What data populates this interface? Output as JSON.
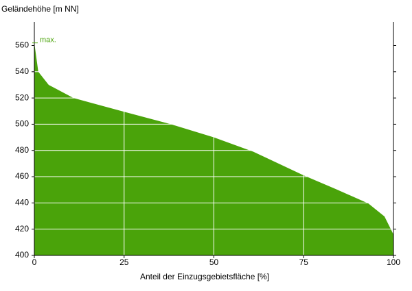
{
  "chart_data": {
    "type": "area",
    "ylabel": "Geländehöhe [m NN]",
    "xlabel": "Anteil der Einzugsgebietsfläche [%]",
    "annotation": "max.",
    "x": [
      0,
      1.1,
      4,
      10.9,
      25,
      38,
      50,
      61,
      75,
      84,
      93,
      97.5,
      100
    ],
    "values": [
      562,
      540,
      530,
      520,
      509.5,
      500,
      490,
      479,
      461,
      450.5,
      439.6,
      429.7,
      416
    ],
    "color": "#4aa30a",
    "xlim": [
      0,
      100
    ],
    "xticks": [
      0,
      25,
      50,
      75,
      100
    ],
    "ylim": [
      400,
      578
    ],
    "yticks": [
      400,
      420,
      440,
      460,
      480,
      500,
      520,
      540,
      560
    ],
    "grid": true
  }
}
